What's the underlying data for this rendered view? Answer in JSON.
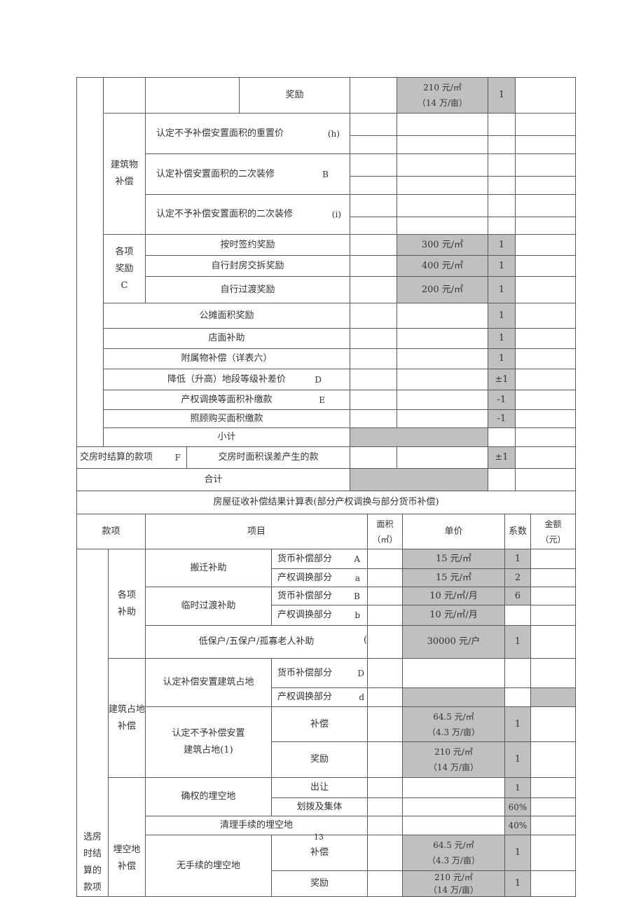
{
  "t1": {
    "r1_label": "奖励",
    "r1_price": "210 元/㎡\n（14 万/亩）",
    "r1_coef": "1",
    "building_group": "建筑物\n补偿",
    "building_items": [
      {
        "label": "认定不予补偿安置面积的重置价",
        "suffix": "(h)"
      },
      {
        "label": "认定补偿安置面积的二次装修",
        "suffix": "B"
      },
      {
        "label": "认定不予补偿安置面积的二次装修",
        "suffix": "(i)"
      }
    ],
    "reward_group": "各项\n奖励\nC",
    "reward_items": [
      {
        "label": "按时签约奖励",
        "price": "300 元/㎡",
        "coef": "1"
      },
      {
        "label": "自行封房交拆奖励",
        "price": "400 元/㎡",
        "coef": "1"
      },
      {
        "label": "自行过渡奖励",
        "price": "200 元/㎡",
        "coef": "1"
      }
    ],
    "other_items": [
      {
        "label": "公摊面积奖励",
        "suffix": "",
        "coef": "1"
      },
      {
        "label": "店面补助",
        "suffix": "",
        "coef": "1"
      },
      {
        "label": "附属物补偿（详表六）",
        "suffix": "",
        "coef": "1"
      },
      {
        "label": "降低（升高）地段等级补差价",
        "suffix": "D",
        "coef": "±1"
      },
      {
        "label": "产权调换等面积补缴款",
        "suffix": "E",
        "coef": "-1"
      },
      {
        "label": "照顾购买面积缴款",
        "suffix": "",
        "coef": "-1"
      }
    ],
    "subtotal": "小计",
    "handover_group": "交房时结算的款项",
    "handover_suffix": "F",
    "handover_item": "交房时面积误差产生的款",
    "handover_coef": "±1",
    "total": "合计"
  },
  "t2": {
    "title": "房屋征收补偿结果计算表(部分产权调换与部分货币补偿)",
    "headers": [
      "款项",
      "项目",
      "面积\n（㎡）",
      "单价",
      "系数",
      "金额\n（元）"
    ],
    "section": "选房\n时结\n算的\n款项",
    "subsidy_group": "各项\n补助",
    "relocation": "搬迁补助",
    "transition": "临时过渡补助",
    "subsidy_rows": [
      {
        "label": "货币补偿部分",
        "suffix": "A",
        "price": "15 元/㎡",
        "coef": "1"
      },
      {
        "label": "产权调换部分",
        "suffix": "a",
        "price": "15 元/㎡",
        "coef": "2"
      },
      {
        "label": "货币补偿部分",
        "suffix": "B",
        "price": "10 元/㎡/月",
        "coef": "6"
      },
      {
        "label": "产权调换部分",
        "suffix": "b",
        "price": "10 元/㎡/月",
        "coef": ""
      }
    ],
    "low_income": "低保户/五保户/孤寡老人补助",
    "low_income_stray": "(",
    "low_income_price": "30000 元/户",
    "low_income_coef": "1",
    "land_group": "建筑占地\n补偿",
    "land_recognized": "认定补偿安置建筑占地",
    "land_recognized_rows": [
      {
        "label": "货币补偿部分",
        "suffix": "D"
      },
      {
        "label": "产权调换部分",
        "suffix": "d"
      }
    ],
    "land_not": "认定不予补偿安置\n建筑占地(1)",
    "land_not_rows": [
      {
        "label": "补偿",
        "price": "64.5 元/㎡\n（4.3 万/亩）",
        "coef": "1"
      },
      {
        "label": "奖励",
        "price": "210 元/㎡\n（14 万/亩）",
        "coef": "1"
      }
    ],
    "vacant_group": "埋空地\n补偿",
    "vacant_confirmed": "确权的埋空地",
    "vacant_confirmed_rows": [
      {
        "label": "出让",
        "coef": "1"
      },
      {
        "label": "划拨及集体",
        "coef": "60%"
      }
    ],
    "vacant_cleared": "清理手续的埋空地",
    "vacant_cleared_coef": "40%",
    "vacant_none": "无手续的埋空地",
    "vacant_none_rows": [
      {
        "label": "补偿",
        "price": "64.5 元/㎡\n（4.3 万/亩）",
        "coef": "1"
      },
      {
        "label": "奖励",
        "price": "210 元/㎡\n（14 万/亩）",
        "coef": "1"
      }
    ]
  },
  "page_number": "13",
  "colors": {
    "shade": "#c0c0c0",
    "border": "#5a5a5a"
  }
}
